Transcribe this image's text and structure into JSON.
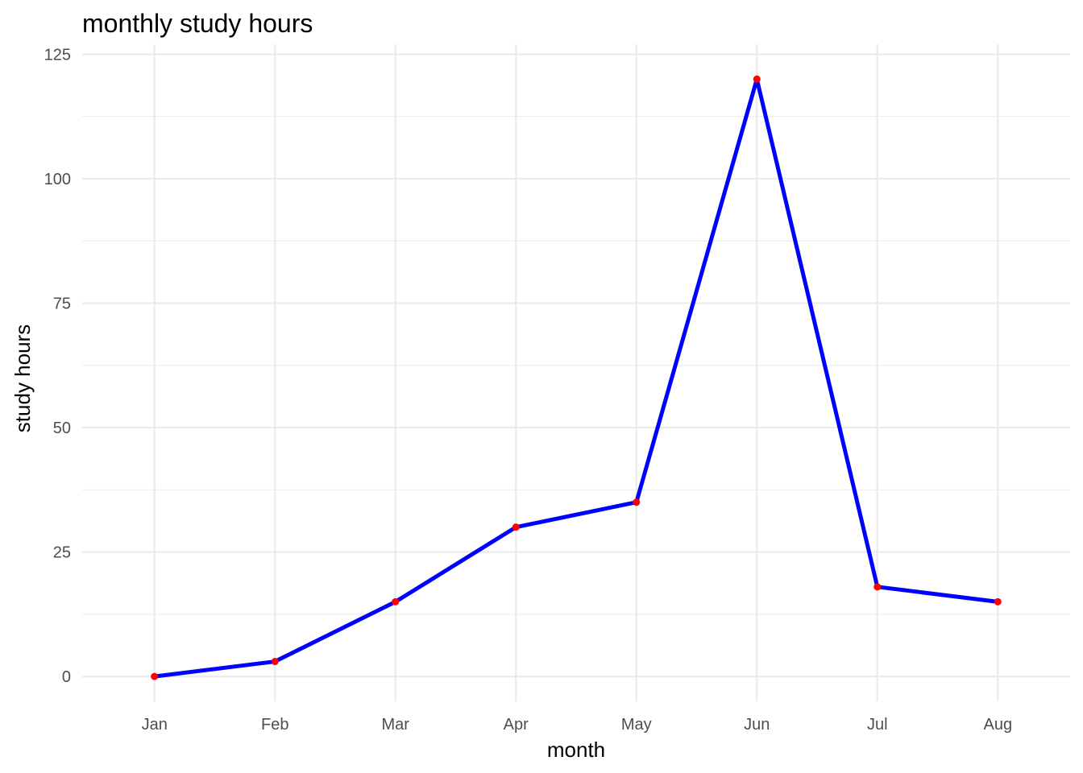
{
  "chart_data": {
    "type": "line",
    "title": "monthly study hours",
    "xlabel": "month",
    "ylabel": "study hours",
    "categories": [
      "Jan",
      "Feb",
      "Mar",
      "Apr",
      "May",
      "Jun",
      "Jul",
      "Aug"
    ],
    "series": [
      {
        "values": [
          0,
          3,
          15,
          30,
          35,
          120,
          18,
          15
        ],
        "line_color": "#0000ff",
        "point_color": "#ff0000"
      }
    ],
    "ylim": [
      -5,
      127
    ],
    "yticks": [
      0,
      25,
      50,
      75,
      100,
      125
    ],
    "grid": true,
    "legend": "none"
  }
}
